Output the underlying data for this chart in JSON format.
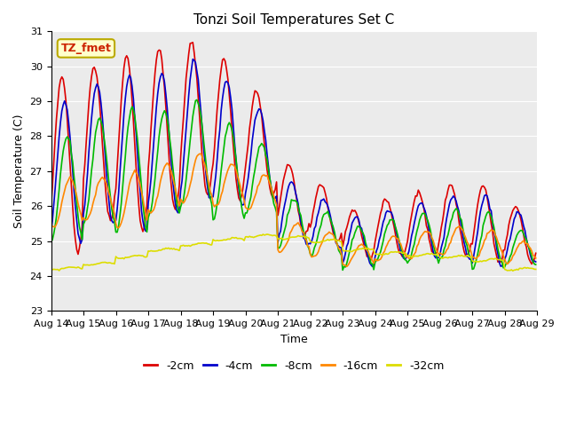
{
  "title": "Tonzi Soil Temperatures Set C",
  "xlabel": "Time",
  "ylabel": "Soil Temperature (C)",
  "ylim": [
    23.0,
    31.0
  ],
  "yticks": [
    23.0,
    24.0,
    25.0,
    26.0,
    27.0,
    28.0,
    29.0,
    30.0,
    31.0
  ],
  "x_labels": [
    "Aug 14",
    "Aug 15",
    "Aug 16",
    "Aug 17",
    "Aug 18",
    "Aug 19",
    "Aug 20",
    "Aug 21",
    "Aug 22",
    "Aug 23",
    "Aug 24",
    "Aug 25",
    "Aug 26",
    "Aug 27",
    "Aug 28",
    "Aug 29"
  ],
  "series": {
    "-2cm": {
      "color": "#dd0000",
      "linewidth": 1.2
    },
    "-4cm": {
      "color": "#0000cc",
      "linewidth": 1.2
    },
    "-8cm": {
      "color": "#00bb00",
      "linewidth": 1.2
    },
    "-16cm": {
      "color": "#ff8800",
      "linewidth": 1.2
    },
    "-32cm": {
      "color": "#dddd00",
      "linewidth": 1.2
    }
  },
  "annotation": {
    "text": "TZ_fmet",
    "fontsize": 9,
    "color": "#cc2200",
    "bbox_facecolor": "#ffffcc",
    "bbox_edgecolor": "#bbaa00"
  },
  "plot_bg_color": "#ebebeb",
  "fig_bg_color": "#ffffff",
  "n_days": 15
}
